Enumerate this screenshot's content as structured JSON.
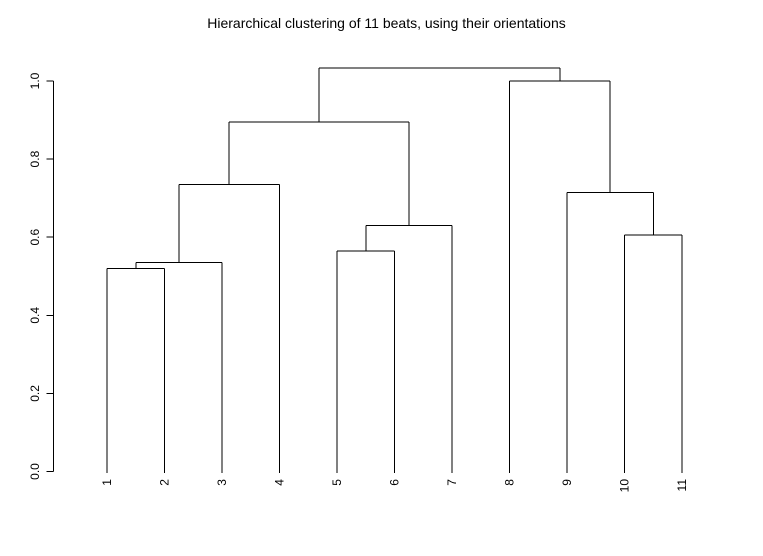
{
  "chart_data": {
    "type": "dendrogram",
    "title": "Hierarchical clustering of 11 beats, using their orientations",
    "orientation": "vertical",
    "xlabel": "",
    "ylabel": "",
    "ylim": [
      0.0,
      1.033
    ],
    "yticks": [
      "0.0",
      "0.2",
      "0.4",
      "0.6",
      "0.8",
      "1.0"
    ],
    "grid": false,
    "line_color": "#000000",
    "background_color": "#ffffff",
    "leaves": [
      "1",
      "2",
      "3",
      "4",
      "5",
      "6",
      "7",
      "8",
      "9",
      "10",
      "11"
    ],
    "merges": [
      {
        "id": "m1",
        "a": "1",
        "b": "2",
        "height": 0.52
      },
      {
        "id": "m2",
        "a": "m1",
        "b": "3",
        "height": 0.535
      },
      {
        "id": "m3",
        "a": "m2",
        "b": "4",
        "height": 0.735
      },
      {
        "id": "m4",
        "a": "5",
        "b": "6",
        "height": 0.565
      },
      {
        "id": "m5",
        "a": "m4",
        "b": "7",
        "height": 0.63
      },
      {
        "id": "m6",
        "a": "m3",
        "b": "m5",
        "height": 0.895
      },
      {
        "id": "m7",
        "a": "10",
        "b": "11",
        "height": 0.605
      },
      {
        "id": "m8",
        "a": "9",
        "b": "m7",
        "height": 0.715
      },
      {
        "id": "m9",
        "a": "8",
        "b": "m8",
        "height": 1.0
      },
      {
        "id": "m10",
        "a": "m6",
        "b": "m9",
        "height": 1.033
      }
    ]
  }
}
